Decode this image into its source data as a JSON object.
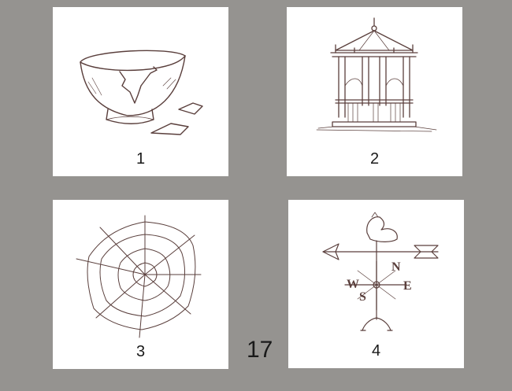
{
  "cards": [
    {
      "number": "1",
      "icon": "broken-bowl-icon"
    },
    {
      "number": "2",
      "icon": "gazebo-icon"
    },
    {
      "number": "3",
      "icon": "spider-web-icon"
    },
    {
      "number": "4",
      "icon": "weathervane-icon"
    }
  ],
  "weathervane": {
    "n": "N",
    "s": "S",
    "e": "E",
    "w": "W"
  },
  "page_number": "17"
}
